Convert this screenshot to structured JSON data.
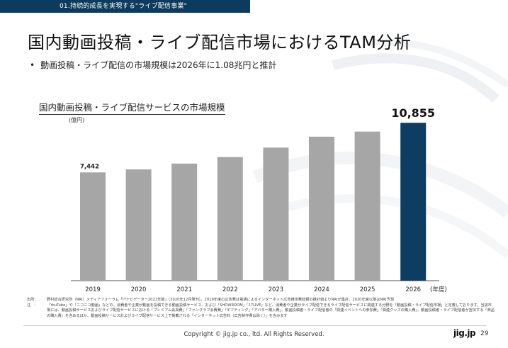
{
  "header": {
    "section_tag": "01.持続的成長を実現する\"ライブ配信事業\"",
    "title": "国内動画投稿・ライブ配信市場におけるTAM分析",
    "bullet": "動画投稿・ライブ配信の市場規模は2026年に1.08兆円と推計"
  },
  "chart_data": {
    "type": "bar",
    "title": "国内動画投稿・ライブ配信サービスの市場規模",
    "ylabel": "(億円)",
    "xlabel": "(年度)",
    "categories": [
      "2019",
      "2020",
      "2021",
      "2022",
      "2023",
      "2024",
      "2025",
      "2026"
    ],
    "values": [
      7442,
      7650,
      8050,
      8500,
      9150,
      9900,
      10250,
      10855
    ],
    "data_labels": [
      "7,442",
      "",
      "",
      "",
      "",
      "",
      "",
      "10,855"
    ],
    "ylim": [
      0,
      11500
    ],
    "colors": {
      "default": "#a6a6a6",
      "highlight": "#0d3e62",
      "axis": "#555555"
    },
    "highlight_index": 7,
    "grid": false
  },
  "source": {
    "label1": "出所：",
    "text1": "野村総合研究所（NRI）メディアフォーラム「ITナビゲーター2021年版」（2020年12月発刊）。2019年度の広告費は電通によるインターネット広告媒体費総額の推計値よりNRIが集計。2020年度以降はNRI予測",
    "label2": "注　：",
    "text2": "「YouTube」や「ニコニコ動画」などの、消費者や企業が動画を投稿できる動画投稿サービス、および「SHOWROOM」「17LIVE」など、消費者や企業がライブ配信できるライブ配信サービスに関連する分野を「動画投稿・ライブ配信市場」と定義しております。当該市場には、動画投稿サービスおよびライブ配信サービスにおける「プレミアム会員費」「ファンクラブ会費費」「ギフティング」「アバター購入費」、動画投稿者・ライブ配信者の「関連イベントへの参加費」「関連グッズの購入費」、動画投稿者・ライブ配信者が宣伝する「商品の購入費」を含めるほか、動画投稿サービスおよびライブ配信サービス上で掲載される「インターネット広告料（広告制作費は除く）」を含みます"
  },
  "footer": {
    "copyright": "Copyright © jig.jp co., ltd. All Rights Reserved.",
    "logo": "jig.jp",
    "page": "29"
  }
}
